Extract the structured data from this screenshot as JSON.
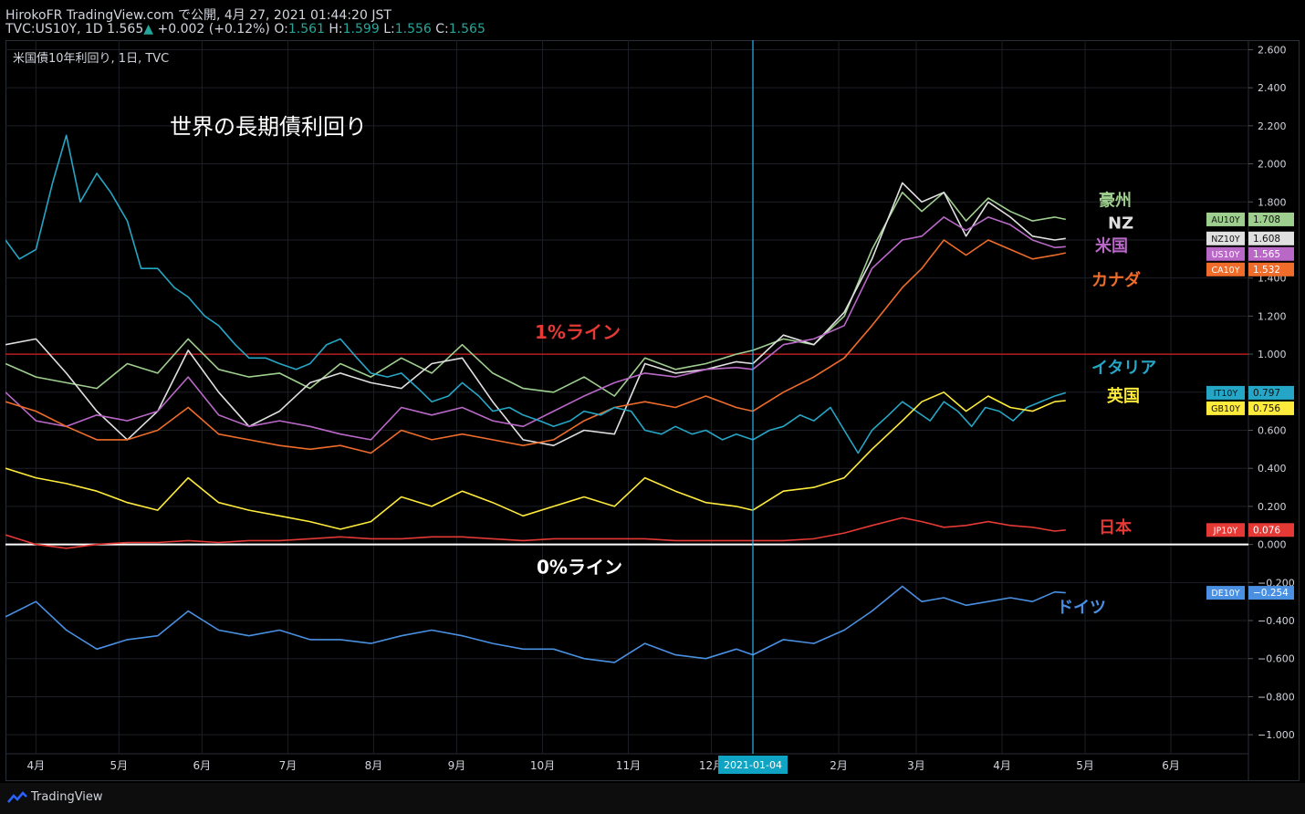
{
  "header": {
    "line1": "HirokoFR TradingView.com で公開, 4月 27, 2021 01:44:20 JST",
    "symbol": "TVC:US10Y, 1D",
    "last": "1.565",
    "up_arrow": "▲",
    "change": "+0.002 (+0.12%)",
    "o_label": "O:",
    "o_val": "1.561",
    "h_label": "H:",
    "h_val": "1.599",
    "l_label": "L:",
    "l_val": "1.556",
    "c_label": "C:",
    "c_val": "1.565"
  },
  "footer": {
    "brand": "TradingView",
    "logo_icon": "tradingview-logo-icon"
  },
  "chart_data": {
    "type": "line",
    "legend_title": "米国債10年利回り, 1日, TVC",
    "title": "世界の長期債利回り",
    "ylim": [
      -1.1,
      2.65
    ],
    "y_ticks": [
      "2.600",
      "2.400",
      "2.200",
      "2.000",
      "1.800",
      "1.600",
      "1.400",
      "1.200",
      "1.000",
      "0.800",
      "0.600",
      "0.400",
      "0.200",
      "0.000",
      "−0.200",
      "−0.400",
      "−0.600",
      "−0.800",
      "−1.000"
    ],
    "y_tick_values": [
      2.6,
      2.4,
      2.2,
      2.0,
      1.8,
      1.6,
      1.4,
      1.2,
      1.0,
      0.8,
      0.6,
      0.4,
      0.2,
      0.0,
      -0.2,
      -0.4,
      -0.6,
      -0.8,
      -1.0
    ],
    "x_labels": [
      "4月",
      "5月",
      "6月",
      "7月",
      "8月",
      "9月",
      "10月",
      "11月",
      "12月",
      "2021-01-04",
      "2月",
      "3月",
      "4月",
      "5月",
      "6月"
    ],
    "x_label_dates": [
      20,
      50,
      80,
      111,
      142,
      172,
      203,
      234,
      264,
      279,
      310,
      338,
      369,
      399,
      430
    ],
    "x_range_days": [
      9,
      458
    ],
    "data_end_day": 392,
    "cursor_label": "2021-01-04",
    "cursor_day": 279,
    "line_1pct": {
      "label": "1%ライン",
      "value": 1.0
    },
    "line_0pct": {
      "label": "0%ライン",
      "value": 0.0
    },
    "series": [
      {
        "key": "AU",
        "name": "豪州",
        "badge": "AU10Y",
        "last": "1.708",
        "color": "#9fcf8f",
        "x": [
          9,
          20,
          31,
          42,
          53,
          64,
          75,
          86,
          97,
          108,
          119,
          130,
          141,
          152,
          163,
          174,
          185,
          196,
          207,
          218,
          229,
          240,
          251,
          262,
          273,
          279,
          290,
          301,
          312,
          322,
          333,
          340,
          348,
          356,
          364,
          372,
          380,
          388,
          392
        ],
        "y": [
          0.95,
          0.88,
          0.85,
          0.82,
          0.95,
          0.9,
          1.08,
          0.92,
          0.88,
          0.9,
          0.82,
          0.95,
          0.88,
          0.98,
          0.9,
          1.05,
          0.9,
          0.82,
          0.8,
          0.88,
          0.78,
          0.98,
          0.92,
          0.95,
          1.0,
          1.02,
          1.08,
          1.05,
          1.2,
          1.55,
          1.85,
          1.75,
          1.85,
          1.7,
          1.82,
          1.75,
          1.7,
          1.72,
          1.708
        ]
      },
      {
        "key": "NZ",
        "name": "NZ",
        "badge": "NZ10Y",
        "last": "1.608",
        "color": "#e0e0e0",
        "x": [
          9,
          20,
          31,
          42,
          53,
          64,
          75,
          86,
          97,
          108,
          119,
          130,
          141,
          152,
          163,
          174,
          185,
          196,
          207,
          218,
          229,
          240,
          251,
          262,
          273,
          279,
          290,
          301,
          312,
          322,
          333,
          340,
          348,
          356,
          364,
          372,
          380,
          388,
          392
        ],
        "y": [
          1.05,
          1.08,
          0.9,
          0.7,
          0.55,
          0.7,
          1.02,
          0.8,
          0.62,
          0.7,
          0.85,
          0.9,
          0.85,
          0.82,
          0.95,
          0.98,
          0.75,
          0.55,
          0.52,
          0.6,
          0.58,
          0.95,
          0.9,
          0.92,
          0.96,
          0.95,
          1.1,
          1.05,
          1.22,
          1.5,
          1.9,
          1.8,
          1.85,
          1.62,
          1.8,
          1.72,
          1.62,
          1.6,
          1.608
        ]
      },
      {
        "key": "US",
        "name": "米国",
        "badge": "US10Y",
        "last": "1.565",
        "color": "#ba68c8",
        "x": [
          9,
          20,
          31,
          42,
          53,
          64,
          75,
          86,
          97,
          108,
          119,
          130,
          141,
          152,
          163,
          174,
          185,
          196,
          207,
          218,
          229,
          240,
          251,
          262,
          273,
          279,
          290,
          301,
          312,
          322,
          333,
          340,
          348,
          356,
          364,
          372,
          380,
          388,
          392
        ],
        "y": [
          0.8,
          0.65,
          0.62,
          0.68,
          0.65,
          0.7,
          0.88,
          0.68,
          0.62,
          0.65,
          0.62,
          0.58,
          0.55,
          0.72,
          0.68,
          0.72,
          0.65,
          0.62,
          0.7,
          0.78,
          0.85,
          0.9,
          0.88,
          0.92,
          0.93,
          0.92,
          1.05,
          1.08,
          1.15,
          1.45,
          1.6,
          1.62,
          1.72,
          1.65,
          1.72,
          1.68,
          1.6,
          1.56,
          1.565
        ]
      },
      {
        "key": "CA",
        "name": "カナダ",
        "badge": "CA10Y",
        "last": "1.532",
        "color": "#ef6c2a",
        "x": [
          9,
          20,
          31,
          42,
          53,
          64,
          75,
          86,
          97,
          108,
          119,
          130,
          141,
          152,
          163,
          174,
          185,
          196,
          207,
          218,
          229,
          240,
          251,
          262,
          273,
          279,
          290,
          301,
          312,
          322,
          333,
          340,
          348,
          356,
          364,
          372,
          380,
          388,
          392
        ],
        "y": [
          0.75,
          0.7,
          0.62,
          0.55,
          0.55,
          0.6,
          0.72,
          0.58,
          0.55,
          0.52,
          0.5,
          0.52,
          0.48,
          0.6,
          0.55,
          0.58,
          0.55,
          0.52,
          0.55,
          0.65,
          0.72,
          0.75,
          0.72,
          0.78,
          0.72,
          0.7,
          0.8,
          0.88,
          0.98,
          1.15,
          1.35,
          1.45,
          1.6,
          1.52,
          1.6,
          1.55,
          1.5,
          1.52,
          1.532
        ]
      },
      {
        "key": "IT",
        "name": "イタリア",
        "badge": "IT10Y",
        "last": "0.797",
        "color": "#26a6c6",
        "x": [
          9,
          14,
          20,
          26,
          31,
          36,
          42,
          47,
          53,
          58,
          64,
          70,
          75,
          81,
          86,
          92,
          97,
          103,
          108,
          114,
          119,
          125,
          130,
          136,
          141,
          147,
          152,
          158,
          163,
          169,
          174,
          180,
          185,
          191,
          196,
          202,
          207,
          213,
          218,
          224,
          229,
          235,
          240,
          246,
          251,
          257,
          262,
          268,
          273,
          279,
          285,
          290,
          296,
          301,
          307,
          312,
          317,
          322,
          328,
          333,
          338,
          343,
          348,
          353,
          358,
          363,
          368,
          373,
          378,
          383,
          388,
          392
        ],
        "y": [
          1.6,
          1.5,
          1.55,
          1.9,
          2.15,
          1.8,
          1.95,
          1.85,
          1.7,
          1.45,
          1.45,
          1.35,
          1.3,
          1.2,
          1.15,
          1.05,
          0.98,
          0.98,
          0.95,
          0.92,
          0.95,
          1.05,
          1.08,
          0.98,
          0.9,
          0.88,
          0.9,
          0.82,
          0.75,
          0.78,
          0.85,
          0.78,
          0.7,
          0.72,
          0.68,
          0.65,
          0.62,
          0.65,
          0.7,
          0.68,
          0.72,
          0.7,
          0.6,
          0.58,
          0.62,
          0.58,
          0.6,
          0.55,
          0.58,
          0.55,
          0.6,
          0.62,
          0.68,
          0.65,
          0.72,
          0.6,
          0.48,
          0.6,
          0.68,
          0.75,
          0.7,
          0.65,
          0.75,
          0.7,
          0.62,
          0.72,
          0.7,
          0.65,
          0.72,
          0.75,
          0.78,
          0.797
        ]
      },
      {
        "key": "GB",
        "name": "英国",
        "badge": "GB10Y",
        "last": "0.756",
        "color": "#ffeb3b",
        "x": [
          9,
          20,
          31,
          42,
          53,
          64,
          75,
          86,
          97,
          108,
          119,
          130,
          141,
          152,
          163,
          174,
          185,
          196,
          207,
          218,
          229,
          240,
          251,
          262,
          273,
          279,
          290,
          301,
          312,
          322,
          333,
          340,
          348,
          356,
          364,
          372,
          380,
          388,
          392
        ],
        "y": [
          0.4,
          0.35,
          0.32,
          0.28,
          0.22,
          0.18,
          0.35,
          0.22,
          0.18,
          0.15,
          0.12,
          0.08,
          0.12,
          0.25,
          0.2,
          0.28,
          0.22,
          0.15,
          0.2,
          0.25,
          0.2,
          0.35,
          0.28,
          0.22,
          0.2,
          0.18,
          0.28,
          0.3,
          0.35,
          0.5,
          0.65,
          0.75,
          0.8,
          0.7,
          0.78,
          0.72,
          0.7,
          0.75,
          0.756
        ]
      },
      {
        "key": "JP",
        "name": "日本",
        "badge": "JP10Y",
        "last": "0.076",
        "color": "#e53935",
        "x": [
          9,
          20,
          31,
          42,
          53,
          64,
          75,
          86,
          97,
          108,
          119,
          130,
          141,
          152,
          163,
          174,
          185,
          196,
          207,
          218,
          229,
          240,
          251,
          262,
          273,
          279,
          290,
          301,
          312,
          322,
          333,
          340,
          348,
          356,
          364,
          372,
          380,
          388,
          392
        ],
        "y": [
          0.05,
          0.0,
          -0.02,
          0.0,
          0.01,
          0.01,
          0.02,
          0.01,
          0.02,
          0.02,
          0.03,
          0.04,
          0.03,
          0.03,
          0.04,
          0.04,
          0.03,
          0.02,
          0.03,
          0.03,
          0.03,
          0.03,
          0.02,
          0.02,
          0.02,
          0.02,
          0.02,
          0.03,
          0.06,
          0.1,
          0.14,
          0.12,
          0.09,
          0.1,
          0.12,
          0.1,
          0.09,
          0.07,
          0.076
        ]
      },
      {
        "key": "DE",
        "name": "ドイツ",
        "badge": "DE10Y",
        "last": "−0.254",
        "color": "#4a90e2",
        "x": [
          9,
          20,
          31,
          42,
          53,
          64,
          75,
          86,
          97,
          108,
          119,
          130,
          141,
          152,
          163,
          174,
          185,
          196,
          207,
          218,
          229,
          240,
          251,
          262,
          273,
          279,
          290,
          301,
          312,
          322,
          333,
          340,
          348,
          356,
          364,
          372,
          380,
          388,
          392
        ],
        "y": [
          -0.38,
          -0.3,
          -0.45,
          -0.55,
          -0.5,
          -0.48,
          -0.35,
          -0.45,
          -0.48,
          -0.45,
          -0.5,
          -0.5,
          -0.52,
          -0.48,
          -0.45,
          -0.48,
          -0.52,
          -0.55,
          -0.55,
          -0.6,
          -0.62,
          -0.52,
          -0.58,
          -0.6,
          -0.55,
          -0.58,
          -0.5,
          -0.52,
          -0.45,
          -0.35,
          -0.22,
          -0.3,
          -0.28,
          -0.32,
          -0.3,
          -0.28,
          -0.3,
          -0.25,
          -0.254
        ]
      }
    ],
    "annotations": [
      {
        "key": "AU",
        "text": "豪州"
      },
      {
        "key": "NZ",
        "text": "NZ"
      },
      {
        "key": "US",
        "text": "米国"
      },
      {
        "key": "CA",
        "text": "カナダ"
      },
      {
        "key": "IT",
        "text": "イタリア"
      },
      {
        "key": "GB",
        "text": "英国"
      },
      {
        "key": "JP",
        "text": "日本"
      },
      {
        "key": "DE",
        "text": "ドイツ"
      }
    ]
  }
}
